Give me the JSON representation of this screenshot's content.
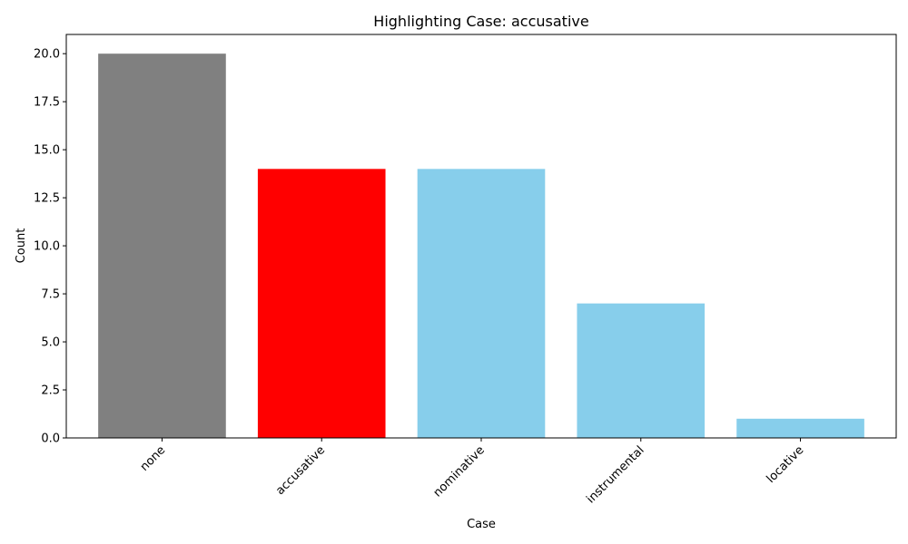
{
  "chart_data": {
    "type": "bar",
    "title": "Highlighting Case: accusative",
    "xlabel": "Case",
    "ylabel": "Count",
    "categories": [
      "none",
      "accusative",
      "nominative",
      "instrumental",
      "locative"
    ],
    "values": [
      20,
      14,
      14,
      7,
      1
    ],
    "colors": [
      "#808080",
      "#ff0000",
      "#87ceeb",
      "#87ceeb",
      "#87ceeb"
    ],
    "ylim": [
      0,
      21
    ],
    "yticks": [
      0.0,
      2.5,
      5.0,
      7.5,
      10.0,
      12.5,
      15.0,
      17.5,
      20.0
    ],
    "ytick_labels": [
      "0.0",
      "2.5",
      "5.0",
      "7.5",
      "10.0",
      "12.5",
      "15.0",
      "17.5",
      "20.0"
    ],
    "grid": false,
    "legend": "none"
  }
}
